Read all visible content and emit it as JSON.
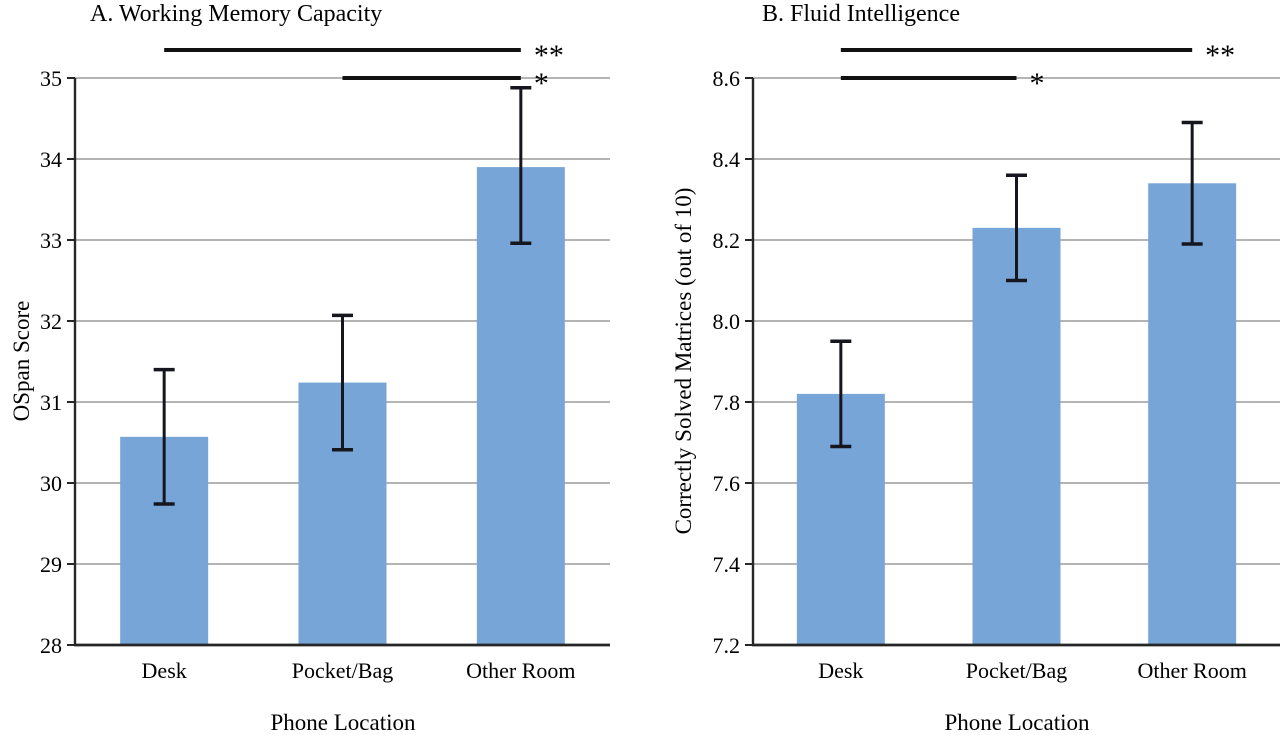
{
  "figure": {
    "background": "#FFFFFF",
    "colors": {
      "bar": "#78A5D7",
      "error_bar": "#16161E",
      "gridline": "#A9A9A9",
      "axis": "#262626",
      "significance_line": "#111111",
      "text": "#000000"
    }
  },
  "chart_data": [
    {
      "type": "bar",
      "panel": "A",
      "title": "A. Working Memory Capacity",
      "xlabel": "Phone Location",
      "ylabel": "OSpan Score",
      "categories": [
        "Desk",
        "Pocket/Bag",
        "Other Room"
      ],
      "values": [
        30.57,
        31.24,
        33.9
      ],
      "error_low": [
        29.74,
        30.41,
        32.96
      ],
      "error_high": [
        31.4,
        32.07,
        34.88
      ],
      "ylim": [
        28,
        35
      ],
      "grid": true,
      "legend": "none",
      "yticks": [
        {
          "value": 28,
          "label": "28"
        },
        {
          "value": 29,
          "label": "29"
        },
        {
          "value": 30,
          "label": "30"
        },
        {
          "value": 31,
          "label": "31"
        },
        {
          "value": 32,
          "label": "32"
        },
        {
          "value": 33,
          "label": "33"
        },
        {
          "value": 34,
          "label": "34"
        },
        {
          "value": 35,
          "label": "35"
        }
      ],
      "significance": [
        {
          "from": "Desk",
          "to": "Other Room",
          "label": "**",
          "tier": "upper"
        },
        {
          "from": "Pocket/Bag",
          "to": "Other Room",
          "label": "*",
          "tier": "lower"
        }
      ]
    },
    {
      "type": "bar",
      "panel": "B",
      "title": "B. Fluid Intelligence",
      "xlabel": "Phone Location",
      "ylabel": "Correctly Solved Matrices (out of 10)",
      "categories": [
        "Desk",
        "Pocket/Bag",
        "Other Room"
      ],
      "values": [
        7.82,
        8.23,
        8.34
      ],
      "error_low": [
        7.69,
        8.1,
        8.19
      ],
      "error_high": [
        7.95,
        8.36,
        8.49
      ],
      "ylim": [
        7.2,
        8.6
      ],
      "grid": true,
      "legend": "none",
      "yticks": [
        {
          "value": 7.2,
          "label": "7.2"
        },
        {
          "value": 7.4,
          "label": "7.4"
        },
        {
          "value": 7.6,
          "label": "7.6"
        },
        {
          "value": 7.8,
          "label": "7.8"
        },
        {
          "value": 8.0,
          "label": "8.0"
        },
        {
          "value": 8.2,
          "label": "8.2"
        },
        {
          "value": 8.4,
          "label": "8.4"
        },
        {
          "value": 8.6,
          "label": "8.6"
        }
      ],
      "significance": [
        {
          "from": "Desk",
          "to": "Other Room",
          "label": "**",
          "tier": "upper"
        },
        {
          "from": "Desk",
          "to": "Pocket/Bag",
          "label": "*",
          "tier": "lower"
        }
      ]
    }
  ]
}
